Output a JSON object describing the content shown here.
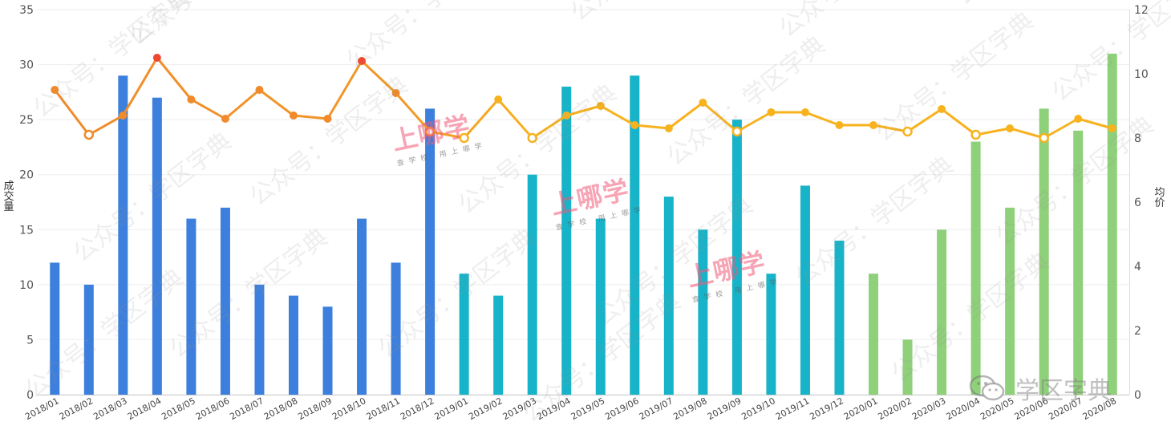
{
  "chart_data": {
    "type": "bar",
    "categories": [
      "2018/01",
      "2018/02",
      "2018/03",
      "2018/04",
      "2018/05",
      "2018/06",
      "2018/07",
      "2018/08",
      "2018/09",
      "2018/10",
      "2018/11",
      "2018/12",
      "2019/01",
      "2019/02",
      "2019/03",
      "2019/04",
      "2019/05",
      "2019/06",
      "2019/07",
      "2019/08",
      "2019/09",
      "2019/10",
      "2019/11",
      "2019/12",
      "2020/01",
      "2020/02",
      "2020/03",
      "2020/04",
      "2020/05",
      "2020/06",
      "2020/07",
      "2020/08"
    ],
    "series": [
      {
        "type": "bar",
        "axis": "left",
        "values": [
          12,
          10,
          29,
          27,
          16,
          17,
          10,
          9,
          8,
          16,
          12,
          26,
          11,
          9,
          20,
          28,
          16,
          29,
          18,
          15,
          25,
          11,
          19,
          14,
          11,
          5,
          15,
          23,
          17,
          26,
          24,
          31
        ]
      },
      {
        "type": "line",
        "axis": "right",
        "values": [
          9.5,
          8.1,
          8.7,
          10.5,
          9.2,
          8.6,
          9.5,
          8.7,
          8.6,
          10.4,
          9.4,
          8.2,
          8.0,
          9.2,
          8.0,
          8.7,
          9.0,
          8.4,
          8.3,
          9.1,
          8.2,
          8.8,
          8.8,
          8.4,
          8.4,
          8.2,
          8.9,
          8.1,
          8.3,
          8.0,
          8.6,
          8.3
        ]
      }
    ],
    "ylabel_left": "成交量",
    "ylabel_right": "均价",
    "ylim_left": [
      0,
      35
    ],
    "ylim_right": [
      0,
      12
    ],
    "yticks_left": [
      "0",
      "5",
      "10",
      "15",
      "20",
      "25",
      "30",
      "35"
    ],
    "yticks_right": [
      "0",
      "2",
      "4",
      "6",
      "8",
      "10",
      "12"
    ],
    "grid": true,
    "colors": {
      "bar_2018": "#3d7fdc",
      "bar_2019": "#17b3c8",
      "bar_2020": "#8fd07a",
      "line": "#f7b21e",
      "line_peak": "#f0482f"
    }
  },
  "watermark": {
    "text": "公众号：学区字典",
    "brand": "上哪学",
    "brand_sub": "查学校 用上哪学",
    "logo": "学区字典"
  }
}
